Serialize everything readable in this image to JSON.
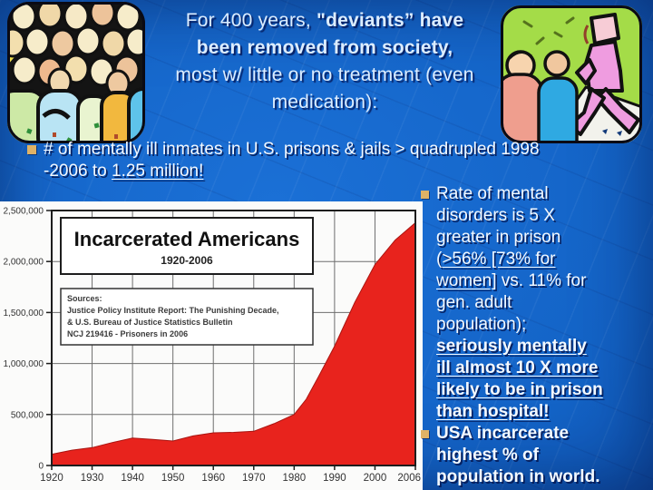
{
  "slide_title": {
    "segments": [
      {
        "text": "For 400 years, "
      },
      {
        "text": "\"deviants” have",
        "bold": true
      },
      {
        "br": true
      },
      {
        "text": "been removed from society,",
        "bold": true
      },
      {
        "br": true
      },
      {
        "text": "most w/ little or no treatment (even"
      },
      {
        "br": true
      },
      {
        "text": "medication):"
      }
    ]
  },
  "bullet_main": {
    "segments": [
      {
        "text": "# of mentally ill inmates in U.S. prisons & jails > quadrupled 1998"
      },
      {
        "br": true
      },
      {
        "text": "-2006 to "
      },
      {
        "text": "1.25 million!",
        "underline": true
      }
    ]
  },
  "right_column": {
    "bullets": [
      {
        "segments": [
          {
            "text": "Rate of mental"
          },
          {
            "br": true
          },
          {
            "text": "disorders is 5 X"
          },
          {
            "br": true
          },
          {
            "text": "greater in prison"
          },
          {
            "br": true
          },
          {
            "text": "("
          },
          {
            "text": ">56% [73% for",
            "underline": true
          },
          {
            "br": true
          },
          {
            "text": "women]",
            "underline": true
          },
          {
            "text": " vs. 11% for"
          },
          {
            "br": true
          },
          {
            "text": "gen. adult"
          },
          {
            "br": true
          },
          {
            "text": "population);"
          },
          {
            "br": true
          },
          {
            "text": "seriously mentally",
            "bold": true,
            "underline": true
          },
          {
            "br": true
          },
          {
            "text": "ill almost 10 X more",
            "bold": true,
            "underline": true
          },
          {
            "br": true
          },
          {
            "text": "likely to be in prison",
            "bold": true,
            "underline": true
          },
          {
            "br": true
          },
          {
            "text": "than hospital!",
            "bold": true,
            "underline": true
          }
        ]
      },
      {
        "segments": [
          {
            "text": "USA incarcerate",
            "bold": true
          },
          {
            "br": true
          },
          {
            "text": "highest % of",
            "bold": true
          },
          {
            "br": true
          },
          {
            "text": "population in world.",
            "bold": true
          }
        ]
      }
    ]
  },
  "chart_data": {
    "type": "area",
    "title": "Incarcerated Americans",
    "subtitle": "1920-2006",
    "sources_lines": [
      "Sources:",
      "Justice Policy Institute Report: The Punishing Decade,",
      "& U.S. Bureau of Justice Statistics Bulletin",
      "NCJ 219416 - Prisoners in 2006"
    ],
    "x": [
      1920,
      1925,
      1930,
      1935,
      1940,
      1945,
      1950,
      1955,
      1960,
      1965,
      1970,
      1975,
      1980,
      1983,
      1986,
      1990,
      1995,
      2000,
      2003,
      2006
    ],
    "values": [
      110000,
      150000,
      175000,
      225000,
      270000,
      255000,
      240000,
      290000,
      320000,
      325000,
      335000,
      410000,
      500000,
      650000,
      870000,
      1170000,
      1600000,
      1970000,
      2210000,
      2380000
    ],
    "xticks": [
      1920,
      1930,
      1940,
      1950,
      1960,
      1970,
      1980,
      1990,
      2000,
      2006
    ],
    "yticks": [
      0,
      500000,
      1000000,
      1500000,
      2000000,
      2500000
    ],
    "ytick_labels": [
      "0",
      "500,000",
      "1,000,000",
      "1,500,000",
      "2,000,000",
      "2,500,000"
    ],
    "ylim": [
      0,
      2500000
    ],
    "grid": true,
    "legend": "none",
    "fill_color": "#e8231d",
    "stroke_color": "#a91410",
    "plot_bg": "#fbfbfa",
    "grid_color": "#6e6e6e",
    "border_color": "#1d1d1d",
    "label_color": "#333333"
  },
  "colors": {
    "slide_bg": "#1363c6",
    "title_text": "#dcedff",
    "body_text": "#f3f9ff",
    "bullet_square": "#dfb266"
  }
}
